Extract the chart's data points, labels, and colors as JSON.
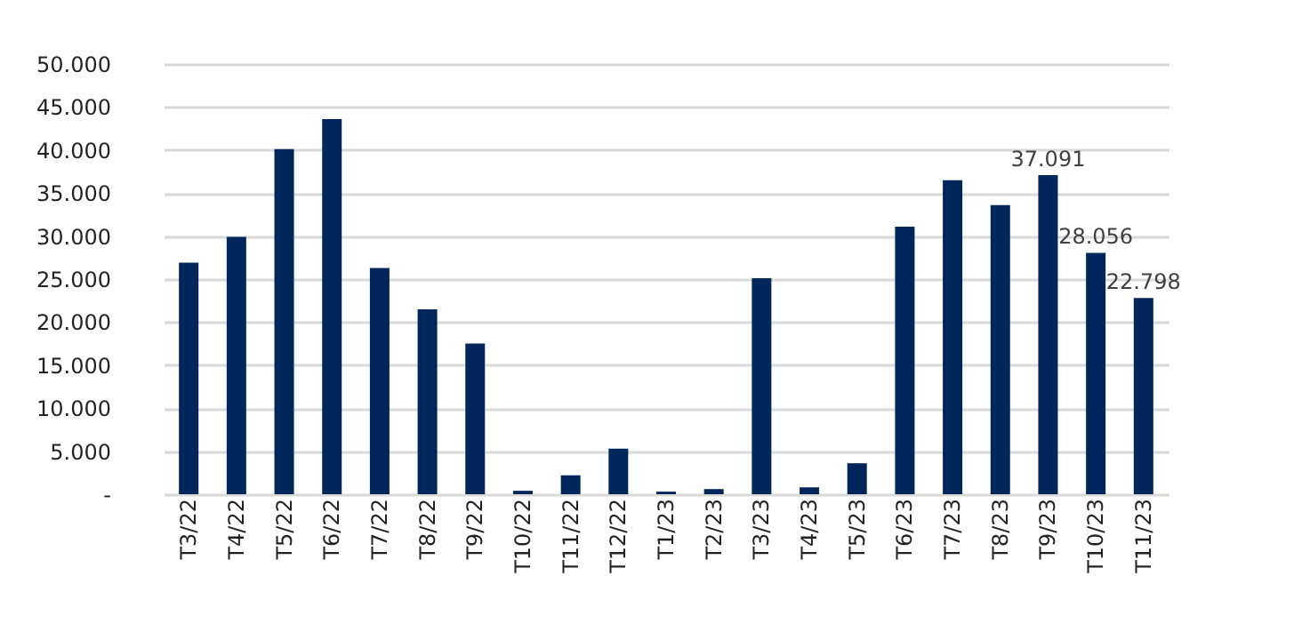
{
  "chart_data": {
    "type": "bar",
    "categories": [
      "T3/22",
      "T4/22",
      "T5/22",
      "T6/22",
      "T7/22",
      "T8/22",
      "T9/22",
      "T10/22",
      "T11/22",
      "T12/22",
      "T1/23",
      "T2/23",
      "T3/23",
      "T4/23",
      "T5/23",
      "T6/23",
      "T7/23",
      "T8/23",
      "T9/23",
      "T10/23",
      "T11/23"
    ],
    "values": [
      26900,
      29900,
      40100,
      43600,
      26300,
      21500,
      17500,
      400,
      2200,
      5300,
      300,
      600,
      25100,
      800,
      3600,
      31100,
      36500,
      33600,
      37091,
      28056,
      22798
    ],
    "value_labels": [
      null,
      null,
      null,
      null,
      null,
      null,
      null,
      null,
      null,
      null,
      null,
      null,
      null,
      null,
      null,
      null,
      null,
      null,
      "37.091",
      "28.056",
      "22.798"
    ],
    "color": "#00275c",
    "ylim": [
      0,
      50000
    ],
    "yticks": [
      {
        "value": 0,
        "label": "-"
      },
      {
        "value": 5000,
        "label": "5.000"
      },
      {
        "value": 10000,
        "label": "10.000"
      },
      {
        "value": 15000,
        "label": "15.000"
      },
      {
        "value": 20000,
        "label": "20.000"
      },
      {
        "value": 25000,
        "label": "25.000"
      },
      {
        "value": 30000,
        "label": "30.000"
      },
      {
        "value": 35000,
        "label": "35.000"
      },
      {
        "value": 40000,
        "label": "40.000"
      },
      {
        "value": 45000,
        "label": "45.000"
      },
      {
        "value": 50000,
        "label": "50.000"
      }
    ],
    "grid": "y"
  }
}
